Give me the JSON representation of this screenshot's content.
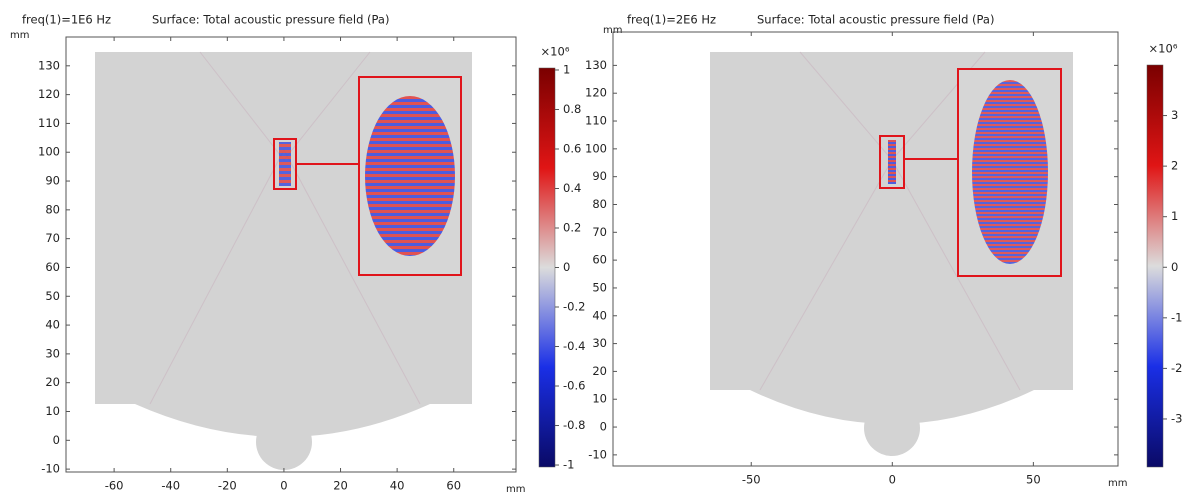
{
  "chart_data": [
    {
      "type": "surface",
      "title": "freq(1)=1E6 Hz",
      "subtitle": "Surface: Total acoustic pressure field (Pa)",
      "x_label": "mm",
      "y_label": "mm",
      "xlim": [
        -77,
        82
      ],
      "ylim": [
        -11,
        140
      ],
      "xticks": [
        -60,
        -40,
        -20,
        0,
        20,
        40,
        60
      ],
      "yticks": [
        -10,
        0,
        10,
        20,
        30,
        40,
        50,
        60,
        70,
        80,
        90,
        100,
        110,
        120,
        130
      ],
      "colorbar": {
        "multiplier": "×10⁶",
        "clim": [
          -1.01,
          1.01
        ],
        "ticks": [
          -1,
          -0.8,
          -0.6,
          -0.4,
          -0.2,
          0,
          0.2,
          0.4,
          0.6,
          0.8,
          1
        ]
      }
    },
    {
      "type": "surface",
      "title": "freq(1)=2E6 Hz",
      "subtitle": "Surface: Total acoustic pressure field (Pa)",
      "x_label": "mm",
      "y_label": "mm",
      "xlim": [
        -99,
        80
      ],
      "ylim": [
        -14,
        142
      ],
      "xticks": [
        -50,
        0,
        50
      ],
      "yticks": [
        -10,
        0,
        10,
        20,
        30,
        40,
        50,
        60,
        70,
        80,
        90,
        100,
        110,
        120,
        130
      ],
      "colorbar": {
        "multiplier": "×10⁶",
        "clim": [
          -3.95,
          4
        ],
        "ticks": [
          -3,
          -2,
          -1,
          0,
          1,
          2,
          3
        ]
      }
    }
  ]
}
